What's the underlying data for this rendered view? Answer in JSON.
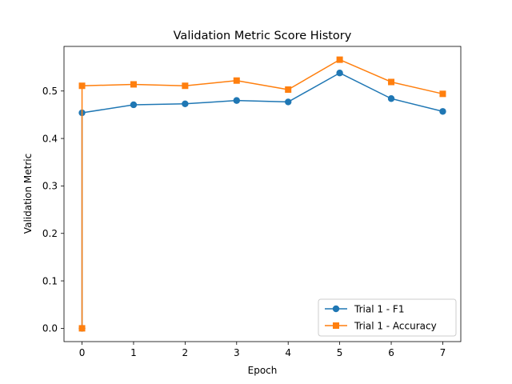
{
  "chart_data": {
    "type": "line",
    "title": "Validation Metric Score History",
    "xlabel": "Epoch",
    "ylabel": "Validation Metric",
    "x": [
      0,
      0,
      1,
      2,
      3,
      4,
      5,
      6,
      7
    ],
    "series": [
      {
        "name": "Trial 1 - F1",
        "color": "#1f77b4",
        "marker": "circle",
        "values": [
          0.0,
          0.454,
          0.471,
          0.473,
          0.48,
          0.477,
          0.538,
          0.484,
          0.457
        ]
      },
      {
        "name": "Trial 1 - Accuracy",
        "color": "#ff7f0e",
        "marker": "square",
        "values": [
          0.0,
          0.511,
          0.514,
          0.511,
          0.522,
          0.503,
          0.566,
          0.519,
          0.494
        ]
      }
    ],
    "xlim": [
      -0.35,
      7.35
    ],
    "ylim": [
      -0.028,
      0.594
    ],
    "xticks": [
      "0",
      "1",
      "2",
      "3",
      "4",
      "5",
      "6",
      "7"
    ],
    "yticks": [
      "0.0",
      "0.1",
      "0.2",
      "0.3",
      "0.4",
      "0.5"
    ],
    "grid": false,
    "legend_position": "lower-right"
  }
}
